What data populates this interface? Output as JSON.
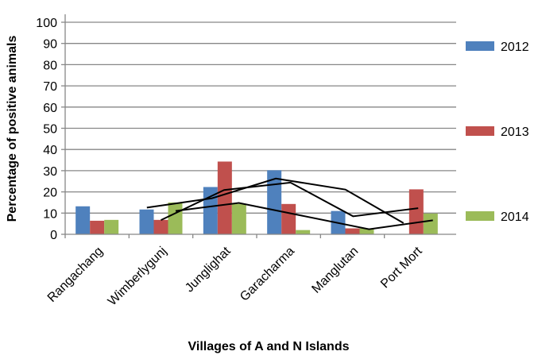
{
  "chart_data": {
    "type": "bar",
    "title": "",
    "xlabel": "Villages of A and N Islands",
    "ylabel": "Percentage of positive animals",
    "ylim": [
      0,
      100
    ],
    "yticks": [
      0,
      10,
      20,
      30,
      40,
      50,
      60,
      70,
      80,
      90,
      100
    ],
    "grid": true,
    "legend_position": "right",
    "categories": [
      "Rangachang",
      "Wimberlygunj",
      "Junglighat",
      "Garacharma",
      "Manglutan",
      "Port Mort"
    ],
    "series": [
      {
        "name": "2012",
        "color": "#4f81bd",
        "values": [
          13.2,
          11.7,
          22.3,
          30.2,
          11,
          0
        ]
      },
      {
        "name": "2013",
        "color": "#c0504d",
        "values": [
          6.4,
          6.8,
          34.3,
          14.3,
          2.8,
          21.2
        ]
      },
      {
        "name": "2014",
        "color": "#9bbb59",
        "values": [
          6.8,
          15,
          14.3,
          2,
          2.8,
          9.8
        ]
      }
    ],
    "trendlines": [
      {
        "color": "#000000",
        "points": [
          [
            0.78,
            12.6
          ],
          [
            1.8,
            17
          ],
          [
            2.8,
            26.3
          ],
          [
            3.89,
            21.1
          ],
          [
            4.8,
            5.3
          ]
        ]
      },
      {
        "color": "#000000",
        "points": [
          [
            1.0,
            6.7
          ],
          [
            1.99,
            20.9
          ],
          [
            3.03,
            24.4
          ],
          [
            4.01,
            8.5
          ],
          [
            5.03,
            12.3
          ]
        ]
      },
      {
        "color": "#000000",
        "points": [
          [
            1.23,
            11
          ],
          [
            2.22,
            14.8
          ],
          [
            4.26,
            2.4
          ],
          [
            5.26,
            6.6
          ]
        ]
      }
    ]
  }
}
